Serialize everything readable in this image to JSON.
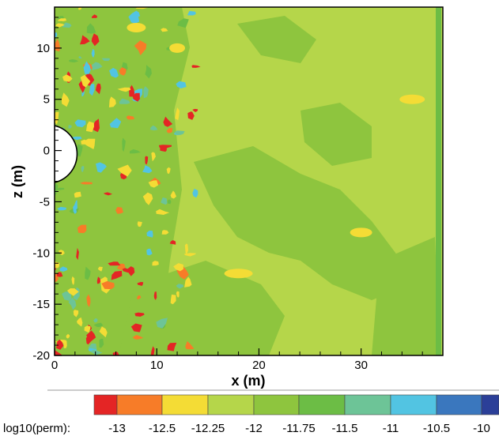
{
  "chart_data": {
    "type": "heatmap",
    "title": "",
    "xlabel": "x (m)",
    "ylabel": "z (m)",
    "xlim": [
      0,
      38
    ],
    "ylim": [
      -20,
      14
    ],
    "x_ticks": [
      0,
      10,
      20,
      30
    ],
    "y_ticks": [
      10,
      5,
      0,
      -5,
      -10,
      -15,
      -20
    ],
    "legend": {
      "label": "log10(perm):",
      "placement": "bottom",
      "tick_labels": [
        "-13",
        "-12.5",
        "-12.25",
        "-12",
        "-11.75",
        "-11.5",
        "-11",
        "-10.5",
        "-10"
      ],
      "colors": [
        "#e42525",
        "#f77c28",
        "#f4dc35",
        "#b5d64a",
        "#8ec53e",
        "#6cbd45",
        "#6dc497",
        "#52c4e2",
        "#3a77be",
        "#2b3f98"
      ]
    },
    "features": {
      "tunnel": {
        "center_x": 0,
        "center_z": 0,
        "radius": 2.8
      }
    }
  }
}
